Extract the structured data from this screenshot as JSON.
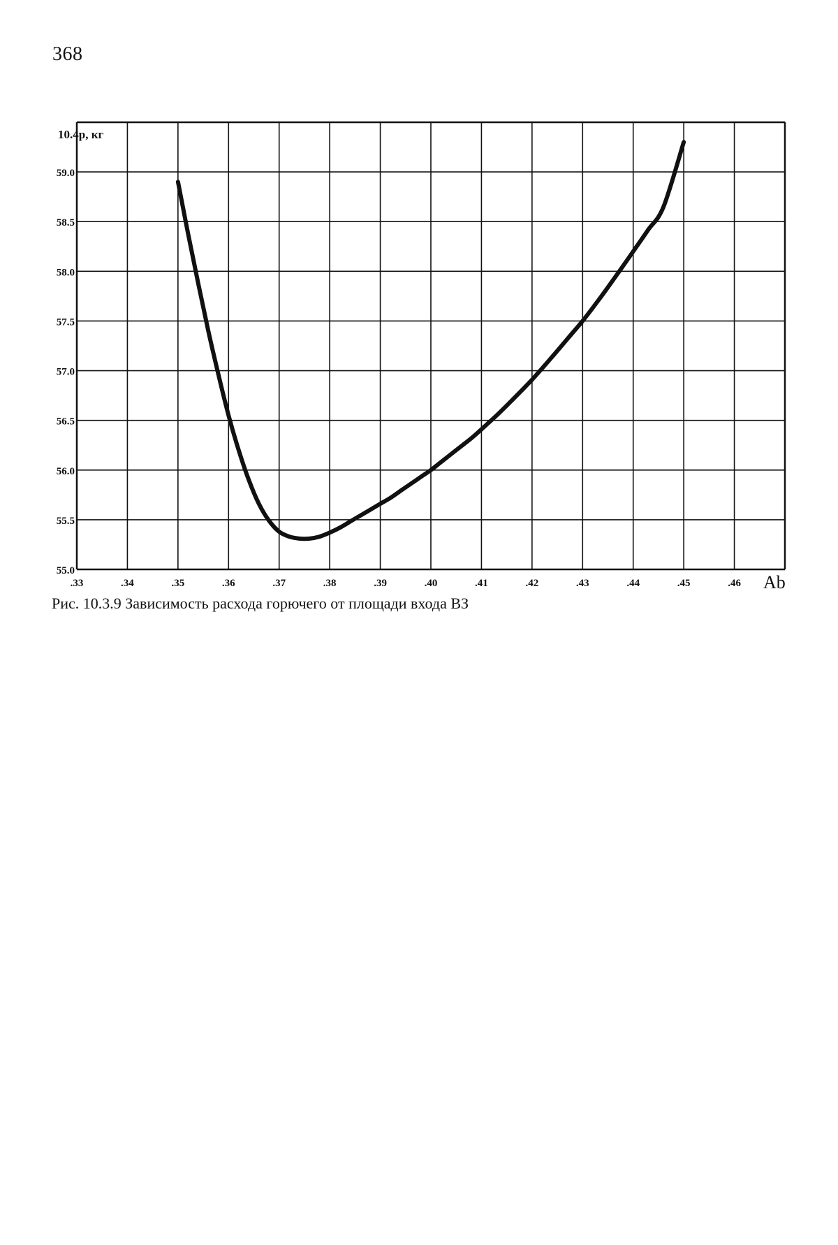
{
  "page": {
    "number": "368",
    "caption": "Рис. 10.3.9 Зависимость расхода горючего от площади входа ВЗ"
  },
  "chart_data": {
    "type": "line",
    "ylabel": "10.4p, кг",
    "xlabel": "Ab",
    "xlim": [
      0.33,
      0.47
    ],
    "ylim": [
      55.0,
      59.5
    ],
    "grid": true,
    "x_tick_labels": [
      ".33",
      ".34",
      ".35",
      ".36",
      ".37",
      ".38",
      ".39",
      ".40",
      ".41",
      ".42",
      ".43",
      ".44",
      ".45",
      ".46"
    ],
    "y_tick_labels": [
      "55.0",
      "55.5",
      "56.0",
      "56.5",
      "57.0",
      "57.5",
      "58.0",
      "58.5",
      "59.0"
    ],
    "series": [
      {
        "x": [
          0.35,
          0.352,
          0.354,
          0.356,
          0.358,
          0.36,
          0.362,
          0.364,
          0.366,
          0.368,
          0.37,
          0.372,
          0.374,
          0.376,
          0.378,
          0.38,
          0.382,
          0.384,
          0.386,
          0.388,
          0.39,
          0.392,
          0.394,
          0.396,
          0.398,
          0.4,
          0.402,
          0.405,
          0.408,
          0.41,
          0.413,
          0.416,
          0.42,
          0.424,
          0.428,
          0.43,
          0.433,
          0.436,
          0.44,
          0.443,
          0.446,
          0.45
        ],
        "y": [
          58.9,
          58.38,
          57.88,
          57.4,
          56.96,
          56.55,
          56.2,
          55.9,
          55.66,
          55.49,
          55.38,
          55.33,
          55.31,
          55.31,
          55.33,
          55.37,
          55.42,
          55.48,
          55.54,
          55.6,
          55.66,
          55.72,
          55.79,
          55.86,
          55.93,
          56.0,
          56.08,
          56.2,
          56.32,
          56.41,
          56.55,
          56.7,
          56.91,
          57.14,
          57.38,
          57.5,
          57.7,
          57.91,
          58.2,
          58.42,
          58.65,
          59.3
        ],
        "color": "#111111"
      }
    ]
  }
}
